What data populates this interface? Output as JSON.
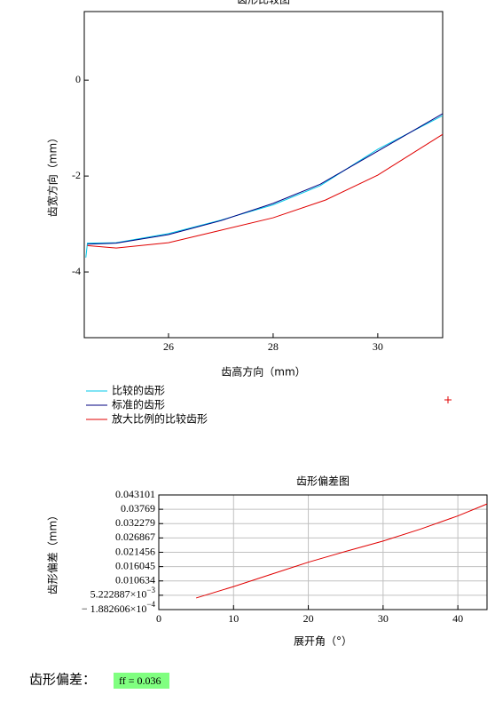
{
  "chart_data": [
    {
      "type": "line",
      "title": "齿形比较图",
      "xlabel": "齿高方向（mm）",
      "ylabel": "齿宽方向（mm）",
      "xlim": [
        24.39,
        31.24
      ],
      "ylim": [
        -5.37,
        1.43
      ],
      "xticks": [
        26,
        28,
        30
      ],
      "yticks": [
        0,
        -2,
        -4
      ],
      "grid": false,
      "series": [
        {
          "name": "比较的齿形",
          "color": "#00c8e8",
          "x": [
            24.42,
            24.45,
            25,
            26,
            27,
            28,
            28.9,
            30,
            31.24
          ],
          "y": [
            -3.7,
            -3.4,
            -3.39,
            -3.2,
            -2.92,
            -2.6,
            -2.2,
            -1.44,
            -0.74
          ]
        },
        {
          "name": "标准的齿形",
          "color": "#000080",
          "x": [
            24.45,
            25,
            26,
            27,
            28,
            28.9,
            30,
            31.24
          ],
          "y": [
            -3.42,
            -3.4,
            -3.22,
            -2.93,
            -2.57,
            -2.17,
            -1.48,
            -0.7
          ]
        },
        {
          "name": "放大比例的比较齿形",
          "color": "#e00000",
          "x": [
            24.45,
            25,
            26,
            27,
            28,
            29,
            30,
            31.24
          ],
          "y": [
            -3.45,
            -3.5,
            -3.39,
            -3.13,
            -2.87,
            -2.5,
            -1.98,
            -1.13
          ]
        }
      ]
    },
    {
      "type": "line",
      "title": "齿形偏差图",
      "xlabel": "展开角（°）",
      "ylabel": "齿形偏差（mm）",
      "xlim": [
        0,
        43.9
      ],
      "ylim": [
        -0.0001882606,
        0.043101
      ],
      "xticks": [
        0,
        10,
        20,
        30,
        40
      ],
      "yticks": [
        0.043101,
        0.03769,
        0.032279,
        0.026867,
        0.021456,
        0.016045,
        0.010634,
        {
          "value": 0.005222887,
          "label": "5.222887×10",
          "exponent": "−3"
        },
        {
          "value": -0.0001882606,
          "label": "− 1.882606×10",
          "exponent": "−4"
        }
      ],
      "grid": true,
      "color": "#e00000",
      "x": [
        5,
        10,
        15,
        20,
        25,
        30,
        35,
        40,
        43.9
      ],
      "values": [
        0.0042,
        0.0085,
        0.0131,
        0.0177,
        0.0218,
        0.0257,
        0.0302,
        0.0352,
        0.0397
      ]
    }
  ],
  "result": {
    "label": "齿形偏差：",
    "text": "ff = 0.036"
  }
}
